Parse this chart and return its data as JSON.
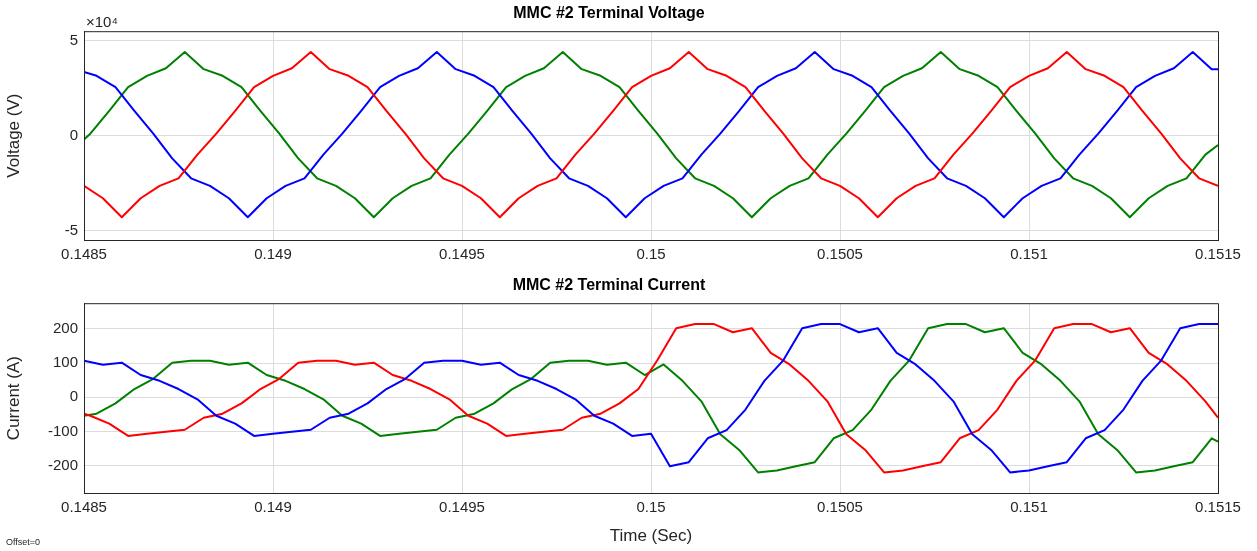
{
  "chart_data": [
    {
      "type": "line",
      "title": "MMC #2 Terminal Voltage",
      "ylabel": "Voltage (V)",
      "annotations": [
        "×10⁴"
      ],
      "xlim": [
        0.1485,
        0.1515
      ],
      "xticks": [
        0.1485,
        0.149,
        0.1495,
        0.15,
        0.1505,
        0.151,
        0.1515
      ],
      "ylim": [
        -5.5,
        5.5
      ],
      "yticks": [
        -5,
        0,
        5
      ],
      "grid": true,
      "series": [
        {
          "color": "#ff0000",
          "x": [
            0.1485,
            0.14855,
            0.1486,
            0.14865,
            0.1487,
            0.14875,
            0.1488,
            0.14885,
            0.1489,
            0.14895,
            0.149,
            0.14905,
            0.1491,
            0.14915,
            0.1492,
            0.14925,
            0.1493,
            0.14935,
            0.1494,
            0.14945,
            0.1495,
            0.14955,
            0.1496,
            0.14965,
            0.1497,
            0.14975,
            0.1498,
            0.14985,
            0.1499,
            0.14995,
            0.15,
            0.15005,
            0.1501,
            0.15015,
            0.1502,
            0.15025,
            0.1503,
            0.15035,
            0.1504,
            0.15045,
            0.1505,
            0.15055,
            0.1506,
            0.15065,
            0.1507,
            0.15075,
            0.1508,
            0.15085,
            0.1509,
            0.15095,
            0.151,
            0.15105,
            0.1511,
            0.15115,
            0.1512,
            0.15125,
            0.1513,
            0.15135,
            0.1514,
            0.15145,
            0.1515
          ],
          "values": [
            -2.65,
            -3.3,
            -4.3,
            -3.3,
            -2.65,
            -2.25,
            -1,
            0.1,
            1.3,
            2.55,
            3.15,
            3.55,
            4.4,
            3.5,
            3.15,
            2.55,
            1.3,
            0.1,
            -1.2,
            -2.25,
            -2.65,
            -3.3,
            -4.3,
            -3.3,
            -2.65,
            -2.25,
            -1,
            0.1,
            1.3,
            2.55,
            3.15,
            3.55,
            4.4,
            3.5,
            3.15,
            2.55,
            1.3,
            0.1,
            -1.2,
            -2.25,
            -2.65,
            -3.3,
            -4.3,
            -3.3,
            -2.65,
            -2.25,
            -1,
            0.1,
            1.3,
            2.55,
            3.15,
            3.55,
            4.4,
            3.5,
            3.15,
            2.55,
            1.3,
            0.1,
            -1.2,
            -2.25,
            -2.65
          ]
        },
        {
          "color": "#0000ff",
          "x": [
            0.1485,
            0.1485333,
            0.1485833,
            0.1486333,
            0.1486833,
            0.1487333,
            0.1487833,
            0.1488333,
            0.1488833,
            0.1489333,
            0.1489833,
            0.1490333,
            0.1490833,
            0.1491333,
            0.1491833,
            0.1492333,
            0.1492833,
            0.1493333,
            0.1493833,
            0.1494333,
            0.1494833,
            0.1495333,
            0.1495833,
            0.1496333,
            0.1496833,
            0.1497333,
            0.1497833,
            0.1498333,
            0.1498833,
            0.1499333,
            0.1499833,
            0.1500333,
            0.1500833,
            0.1501333,
            0.1501833,
            0.1502333,
            0.1502833,
            0.1503333,
            0.1503833,
            0.1504333,
            0.1504833,
            0.1505333,
            0.1505833,
            0.1506333,
            0.1506833,
            0.1507333,
            0.1507833,
            0.1508333,
            0.1508833,
            0.1509333,
            0.1509833,
            0.1510333,
            0.1510833,
            0.1511333,
            0.1511833,
            0.1512333,
            0.1512833,
            0.1513333,
            0.1513833,
            0.1514333,
            0.1514833,
            0.1515
          ],
          "values": [
            3.35,
            3.15,
            2.55,
            1.3,
            0.1,
            -1.2,
            -2.25,
            -2.65,
            -3.3,
            -4.3,
            -3.3,
            -2.65,
            -2.25,
            -1,
            0.1,
            1.3,
            2.55,
            3.15,
            3.55,
            4.4,
            3.5,
            3.15,
            2.55,
            1.3,
            0.1,
            -1.2,
            -2.25,
            -2.65,
            -3.3,
            -4.3,
            -3.3,
            -2.65,
            -2.25,
            -1,
            0.1,
            1.3,
            2.55,
            3.15,
            3.55,
            4.4,
            3.5,
            3.15,
            2.55,
            1.3,
            0.1,
            -1.2,
            -2.25,
            -2.65,
            -3.3,
            -4.3,
            -3.3,
            -2.65,
            -2.25,
            -1,
            0.1,
            1.3,
            2.55,
            3.15,
            3.55,
            4.4,
            3.5,
            3.5
          ]
        },
        {
          "color": "#008000",
          "x": [
            0.1485,
            0.1485167,
            0.1485667,
            0.1486167,
            0.1486667,
            0.1487167,
            0.1487667,
            0.1488167,
            0.1488667,
            0.1489167,
            0.1489667,
            0.1490167,
            0.1490667,
            0.1491167,
            0.1491667,
            0.1492167,
            0.1492667,
            0.1493167,
            0.1493667,
            0.1494167,
            0.1494667,
            0.1495167,
            0.1495667,
            0.1496167,
            0.1496667,
            0.1497167,
            0.1497667,
            0.1498167,
            0.1498667,
            0.1499167,
            0.1499667,
            0.1500167,
            0.1500667,
            0.1501167,
            0.1501667,
            0.1502167,
            0.1502667,
            0.1503167,
            0.1503667,
            0.1504167,
            0.1504667,
            0.1505167,
            0.1505667,
            0.1506167,
            0.1506667,
            0.1507167,
            0.1507667,
            0.1508167,
            0.1508667,
            0.1509167,
            0.1509667,
            0.1510167,
            0.1510667,
            0.1511167,
            0.1511667,
            0.1512167,
            0.1512667,
            0.1513167,
            0.1513667,
            0.1514167,
            0.1514667,
            0.1515
          ],
          "values": [
            -0.2,
            0.1,
            1.3,
            2.55,
            3.15,
            3.55,
            4.4,
            3.5,
            3.15,
            2.55,
            1.3,
            0.1,
            -1.2,
            -2.25,
            -2.65,
            -3.3,
            -4.3,
            -3.3,
            -2.65,
            -2.25,
            -1,
            0.1,
            1.3,
            2.55,
            3.15,
            3.55,
            4.4,
            3.5,
            3.15,
            2.55,
            1.3,
            0.1,
            -1.2,
            -2.25,
            -2.65,
            -3.3,
            -4.3,
            -3.3,
            -2.65,
            -2.25,
            -1,
            0.1,
            1.3,
            2.55,
            3.15,
            3.55,
            4.4,
            3.5,
            3.15,
            2.55,
            1.3,
            0.1,
            -1.2,
            -2.25,
            -2.65,
            -3.3,
            -4.3,
            -3.3,
            -2.65,
            -2.25,
            -1,
            -0.5
          ]
        }
      ]
    },
    {
      "type": "line",
      "title": "MMC #2 Terminal Current",
      "xlabel": "Time (Sec)",
      "ylabel": "Current (A)",
      "annotations": [
        "Offset=0"
      ],
      "xlim": [
        0.1485,
        0.1515
      ],
      "xticks": [
        0.1485,
        0.149,
        0.1495,
        0.15,
        0.1505,
        0.151,
        0.1515
      ],
      "ylim": [
        -280,
        275
      ],
      "yticks": [
        -200,
        -100,
        0,
        100,
        200
      ],
      "grid": true,
      "series": [
        {
          "color": "#0000ff",
          "x": [
            0.1485,
            0.14855,
            0.1486,
            0.14865,
            0.1487,
            0.14875,
            0.1488,
            0.14885,
            0.1489,
            0.14895,
            0.149,
            0.14905,
            0.1491,
            0.14915,
            0.1492,
            0.14925,
            0.1493,
            0.14935,
            0.1494,
            0.14945,
            0.1495,
            0.14955,
            0.1496,
            0.14965,
            0.1497,
            0.14975,
            0.1498,
            0.14985,
            0.1499,
            0.14995,
            0.15,
            0.15005,
            0.1501,
            0.15015,
            0.1502,
            0.15025,
            0.1503,
            0.15035,
            0.1504,
            0.15045,
            0.1505,
            0.15055,
            0.1506,
            0.15065,
            0.1507,
            0.15075,
            0.1508,
            0.15085,
            0.1509,
            0.15095,
            0.151,
            0.15105,
            0.1511,
            0.15115,
            0.1512,
            0.15125,
            0.1513,
            0.15135,
            0.1514,
            0.15145,
            0.1515
          ],
          "values": [
            107,
            95,
            101,
            65,
            48,
            24,
            -6,
            -54,
            -77,
            -113,
            -107,
            -101,
            -95,
            -60,
            -48,
            -18,
            24,
            54,
            101,
            107,
            107,
            95,
            101,
            65,
            48,
            24,
            -6,
            -54,
            -77,
            -113,
            -107,
            -202,
            -190,
            -120,
            -96,
            -36,
            48,
            108,
            202,
            214,
            214,
            190,
            202,
            130,
            96,
            48,
            -12,
            -108,
            -154,
            -220,
            -214,
            -202,
            -190,
            -120,
            -96,
            -36,
            48,
            108,
            202,
            214,
            214
          ]
        },
        {
          "color": "#ff0000",
          "x": [
            0.1485,
            0.1485167,
            0.1485667,
            0.1486167,
            0.1486667,
            0.1487167,
            0.1487667,
            0.1488167,
            0.1488667,
            0.1489167,
            0.1489667,
            0.1490167,
            0.1490667,
            0.1491167,
            0.1491667,
            0.1492167,
            0.1492667,
            0.1493167,
            0.1493667,
            0.1494167,
            0.1494667,
            0.1495167,
            0.1495667,
            0.1496167,
            0.1496667,
            0.1497167,
            0.1497667,
            0.1498167,
            0.1498667,
            0.1499167,
            0.1499667,
            0.1500167,
            0.1500667,
            0.1501167,
            0.1501667,
            0.1502167,
            0.1502667,
            0.1503167,
            0.1503667,
            0.1504167,
            0.1504667,
            0.1505167,
            0.1505667,
            0.1506167,
            0.1506667,
            0.1507167,
            0.1507667,
            0.1508167,
            0.1508667,
            0.1509167,
            0.1509667,
            0.1510167,
            0.1510667,
            0.1511167,
            0.1511667,
            0.1512167,
            0.1512667,
            0.1513167,
            0.1513667,
            0.1514167,
            0.1514667,
            0.1515
          ],
          "values": [
            -48,
            -54,
            -77,
            -113,
            -107,
            -101,
            -95,
            -60,
            -48,
            -18,
            24,
            54,
            101,
            107,
            107,
            95,
            101,
            65,
            48,
            24,
            -6,
            -54,
            -77,
            -113,
            -107,
            -101,
            -95,
            -60,
            -48,
            -18,
            24,
            108,
            202,
            214,
            214,
            190,
            202,
            130,
            96,
            48,
            -12,
            -108,
            -154,
            -220,
            -214,
            -202,
            -190,
            -120,
            -96,
            -36,
            48,
            108,
            202,
            214,
            214,
            190,
            202,
            130,
            96,
            48,
            -12,
            -60
          ]
        },
        {
          "color": "#008000",
          "x": [
            0.1485,
            0.1485333,
            0.1485833,
            0.1486333,
            0.1486833,
            0.1487333,
            0.1487833,
            0.1488333,
            0.1488833,
            0.1489333,
            0.1489833,
            0.1490333,
            0.1490833,
            0.1491333,
            0.1491833,
            0.1492333,
            0.1492833,
            0.1493333,
            0.1493833,
            0.1494333,
            0.1494833,
            0.1495333,
            0.1495833,
            0.1496333,
            0.1496833,
            0.1497333,
            0.1497833,
            0.1498333,
            0.1498833,
            0.1499333,
            0.1499833,
            0.1500333,
            0.1500833,
            0.1501333,
            0.1501833,
            0.1502333,
            0.1502833,
            0.1503333,
            0.1503833,
            0.1504333,
            0.1504833,
            0.1505333,
            0.1505833,
            0.1506333,
            0.1506833,
            0.1507333,
            0.1507833,
            0.1508333,
            0.1508833,
            0.1509333,
            0.1509833,
            0.1510333,
            0.1510833,
            0.1511333,
            0.1511833,
            0.1512333,
            0.1512833,
            0.1513333,
            0.1513833,
            0.1514333,
            0.1514833,
            0.1515
          ],
          "values": [
            -54,
            -48,
            -18,
            24,
            54,
            101,
            107,
            107,
            95,
            101,
            65,
            48,
            24,
            -6,
            -54,
            -77,
            -113,
            -107,
            -101,
            -95,
            -60,
            -48,
            -18,
            24,
            54,
            101,
            107,
            107,
            95,
            101,
            65,
            96,
            48,
            -12,
            -108,
            -154,
            -220,
            -214,
            -202,
            -190,
            -120,
            -96,
            -36,
            48,
            108,
            202,
            214,
            214,
            190,
            202,
            130,
            96,
            48,
            -12,
            -108,
            -154,
            -220,
            -214,
            -202,
            -190,
            -120,
            -130
          ]
        }
      ]
    }
  ]
}
